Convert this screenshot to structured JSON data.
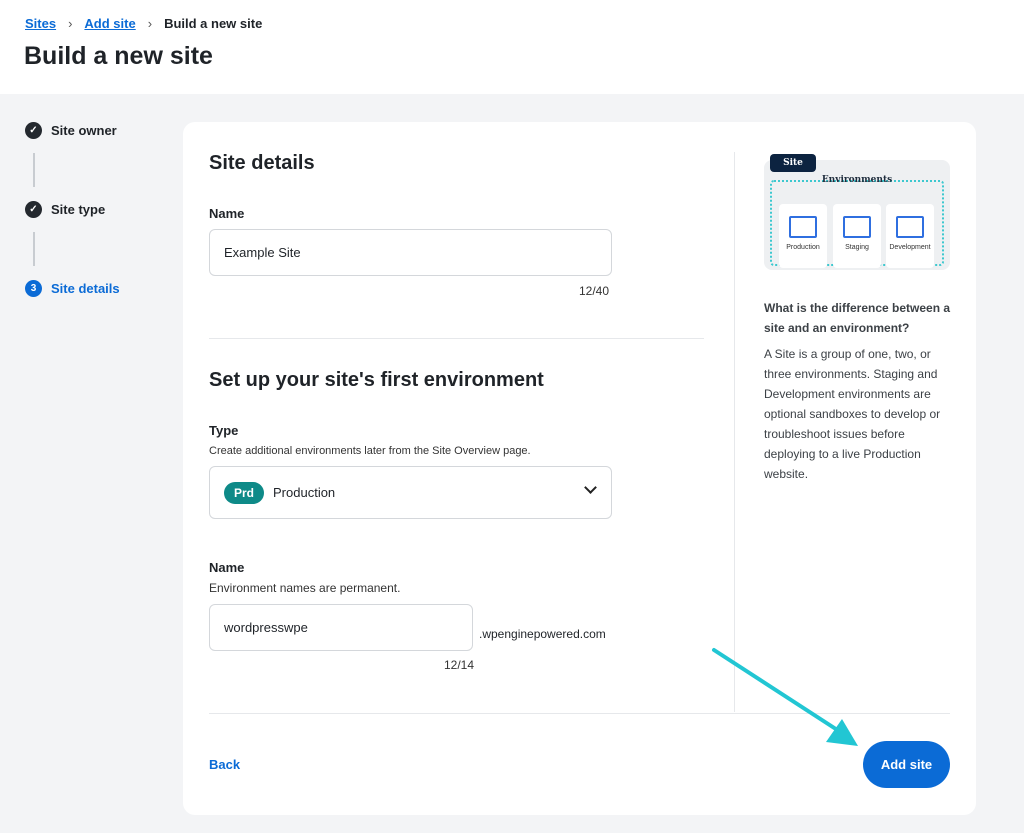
{
  "breadcrumb": [
    "Sites",
    "Add site",
    "Build a new site"
  ],
  "page_title": "Build a new site",
  "steps": [
    {
      "label": "Site owner",
      "state": "done"
    },
    {
      "label": "Site type",
      "state": "done"
    },
    {
      "label": "Site details",
      "state": "current",
      "number": "3"
    }
  ],
  "site_details": {
    "title": "Site details",
    "name_label": "Name",
    "name_value": "Example Site",
    "name_count": "12/40"
  },
  "environment": {
    "title": "Set up your site's first environment",
    "type_label": "Type",
    "type_hint": "Create additional environments later from the Site Overview page.",
    "type_badge": "Prd",
    "type_value": "Production",
    "name_label": "Name",
    "name_hint": "Environment names are permanent.",
    "name_value": "wordpresswpe",
    "name_suffix": ".wpenginepowered.com",
    "name_count": "12/14"
  },
  "illustration": {
    "site": "Site",
    "environments": "Environments",
    "items": [
      "Production",
      "Staging",
      "Development"
    ]
  },
  "help": {
    "title": "What is the difference between a site and an environment?",
    "body": "A Site is a group of one, two, or three environments. Staging and Development environments are optional sandboxes to develop or troubleshoot issues before deploying to a live Production website."
  },
  "footer": {
    "back": "Back",
    "add_site": "Add site"
  },
  "colors": {
    "accent": "#0b6bd6",
    "badge": "#0e8a88",
    "arrow": "#22c6d3"
  }
}
